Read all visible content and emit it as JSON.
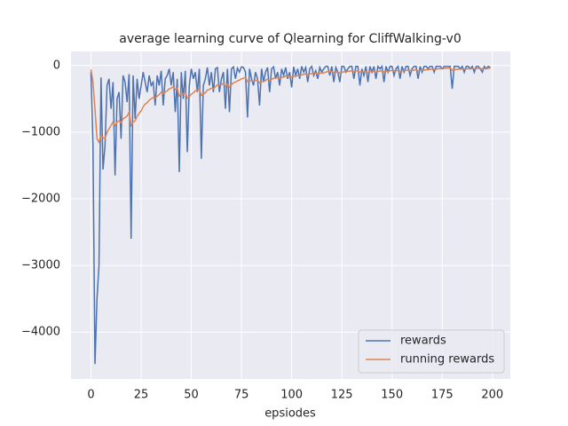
{
  "chart_data": {
    "type": "line",
    "title": "average learning curve of Qlearning for CliffWalking-v0",
    "xlabel": "epsiodes",
    "x": [
      0,
      1,
      2,
      3,
      4,
      5,
      6,
      7,
      8,
      9,
      10,
      11,
      12,
      13,
      14,
      15,
      16,
      17,
      18,
      19,
      20,
      21,
      22,
      23,
      24,
      25,
      26,
      27,
      28,
      29,
      30,
      31,
      32,
      33,
      34,
      35,
      36,
      37,
      38,
      39,
      40,
      41,
      42,
      43,
      44,
      45,
      46,
      47,
      48,
      49,
      50,
      51,
      52,
      53,
      54,
      55,
      56,
      57,
      58,
      59,
      60,
      61,
      62,
      63,
      64,
      65,
      66,
      67,
      68,
      69,
      70,
      71,
      72,
      73,
      74,
      75,
      76,
      77,
      78,
      79,
      80,
      81,
      82,
      83,
      84,
      85,
      86,
      87,
      88,
      89,
      90,
      91,
      92,
      93,
      94,
      95,
      96,
      97,
      98,
      99,
      100,
      101,
      102,
      103,
      104,
      105,
      106,
      107,
      108,
      109,
      110,
      111,
      112,
      113,
      114,
      115,
      116,
      117,
      118,
      119,
      120,
      121,
      122,
      123,
      124,
      125,
      126,
      127,
      128,
      129,
      130,
      131,
      132,
      133,
      134,
      135,
      136,
      137,
      138,
      139,
      140,
      141,
      142,
      143,
      144,
      145,
      146,
      147,
      148,
      149,
      150,
      151,
      152,
      153,
      154,
      155,
      156,
      157,
      158,
      159,
      160,
      161,
      162,
      163,
      164,
      165,
      166,
      167,
      168,
      169,
      170,
      171,
      172,
      173,
      174,
      175,
      176,
      177,
      178,
      179,
      180,
      181,
      182,
      183,
      184,
      185,
      186,
      187,
      188,
      189,
      190,
      191,
      192,
      193,
      194,
      195,
      196,
      197,
      198,
      199
    ],
    "series": [
      {
        "name": "rewards",
        "color": "#4c72b0",
        "values": [
          -100,
          -1200,
          -4480,
          -3500,
          -3000,
          -180,
          -1560,
          -1200,
          -300,
          -200,
          -650,
          -250,
          -1650,
          -500,
          -400,
          -1100,
          -150,
          -250,
          -550,
          -130,
          -2600,
          -150,
          -800,
          -200,
          -500,
          -300,
          -100,
          -250,
          -400,
          -150,
          -300,
          -250,
          -600,
          -150,
          -300,
          -80,
          -600,
          -200,
          -150,
          -50,
          -300,
          -100,
          -700,
          -200,
          -1600,
          -100,
          -500,
          -80,
          -1300,
          -300,
          -50,
          -200,
          -100,
          -400,
          -50,
          -1400,
          -300,
          -200,
          -30,
          -300,
          -100,
          -400,
          -50,
          -30,
          -400,
          -200,
          -100,
          -650,
          -50,
          -700,
          -50,
          -20,
          -200,
          -40,
          -100,
          -20,
          -30,
          -100,
          -780,
          -50,
          -200,
          -300,
          -100,
          -200,
          -600,
          -50,
          -250,
          -100,
          -30,
          -400,
          -50,
          -20,
          -200,
          -100,
          -300,
          -50,
          -150,
          -30,
          -200,
          -100,
          -330,
          -20,
          -150,
          -50,
          -200,
          -13,
          -100,
          -30,
          -250,
          -50,
          -13,
          -150,
          -80,
          -200,
          -30,
          -100,
          -50,
          -13,
          -13,
          -150,
          -13,
          -250,
          -30,
          -100,
          -250,
          -13,
          -13,
          -100,
          -50,
          -13,
          -13,
          -200,
          -13,
          -13,
          -300,
          -50,
          -150,
          -13,
          -250,
          -13,
          -100,
          -13,
          -200,
          -13,
          -50,
          -13,
          -250,
          -13,
          -100,
          -13,
          -13,
          -150,
          -50,
          -13,
          -200,
          -13,
          -100,
          -13,
          -13,
          -150,
          -50,
          -13,
          -13,
          -200,
          -13,
          -100,
          -13,
          -13,
          -50,
          -13,
          -13,
          -100,
          -13,
          -13,
          -13,
          -50,
          -13,
          -13,
          -13,
          -13,
          -350,
          -13,
          -13,
          -13,
          -50,
          -13,
          -100,
          -13,
          -13,
          -50,
          -13,
          -100,
          -13,
          -13,
          -50,
          -100,
          -13,
          -50,
          -13,
          -30
        ]
      },
      {
        "name": "running rewards",
        "color": "#dd8452",
        "values": [
          -60,
          -250,
          -650,
          -1100,
          -1150,
          -1050,
          -1080,
          -1100,
          -1000,
          -950,
          -900,
          -850,
          -900,
          -850,
          -830,
          -860,
          -800,
          -780,
          -760,
          -700,
          -900,
          -850,
          -830,
          -760,
          -720,
          -680,
          -620,
          -580,
          -560,
          -520,
          -500,
          -480,
          -490,
          -460,
          -440,
          -400,
          -420,
          -400,
          -380,
          -350,
          -340,
          -320,
          -360,
          -340,
          -460,
          -420,
          -430,
          -400,
          -490,
          -470,
          -430,
          -410,
          -380,
          -380,
          -350,
          -450,
          -430,
          -410,
          -370,
          -360,
          -340,
          -350,
          -320,
          -290,
          -300,
          -290,
          -270,
          -310,
          -280,
          -320,
          -290,
          -260,
          -250,
          -230,
          -220,
          -200,
          -190,
          -180,
          -240,
          -230,
          -230,
          -240,
          -225,
          -220,
          -260,
          -240,
          -240,
          -225,
          -205,
          -225,
          -210,
          -190,
          -190,
          -180,
          -195,
          -180,
          -175,
          -160,
          -165,
          -160,
          -175,
          -160,
          -160,
          -150,
          -155,
          -140,
          -135,
          -125,
          -140,
          -130,
          -120,
          -120,
          -115,
          -125,
          -115,
          -115,
          -110,
          -100,
          -90,
          -95,
          -90,
          -105,
          -100,
          -100,
          -115,
          -105,
          -95,
          -95,
          -90,
          -85,
          -80,
          -90,
          -85,
          -80,
          -100,
          -95,
          -100,
          -90,
          -105,
          -95,
          -95,
          -90,
          -100,
          -90,
          -85,
          -80,
          -95,
          -85,
          -90,
          -80,
          -75,
          -80,
          -80,
          -75,
          -85,
          -80,
          -80,
          -75,
          -70,
          -75,
          -75,
          -70,
          -65,
          -80,
          -75,
          -75,
          -70,
          -65,
          -65,
          -60,
          -55,
          -60,
          -55,
          -50,
          -48,
          -48,
          -45,
          -42,
          -40,
          -38,
          -70,
          -65,
          -60,
          -55,
          -55,
          -50,
          -55,
          -52,
          -48,
          -48,
          -45,
          -50,
          -47,
          -44,
          -45,
          -50,
          -46,
          -46,
          -43,
          -42
        ]
      }
    ],
    "xlim": [
      -9.95,
      208.95
    ],
    "ylim": [
      -4703,
      210
    ],
    "xticks": [
      0,
      25,
      50,
      75,
      100,
      125,
      150,
      175,
      200
    ],
    "yticks": [
      {
        "value": -4000,
        "label": "−4000"
      },
      {
        "value": -3000,
        "label": "−3000"
      },
      {
        "value": -2000,
        "label": "−2000"
      },
      {
        "value": -1000,
        "label": "−1000"
      },
      0
    ],
    "grid": true,
    "legend": "lower right"
  }
}
